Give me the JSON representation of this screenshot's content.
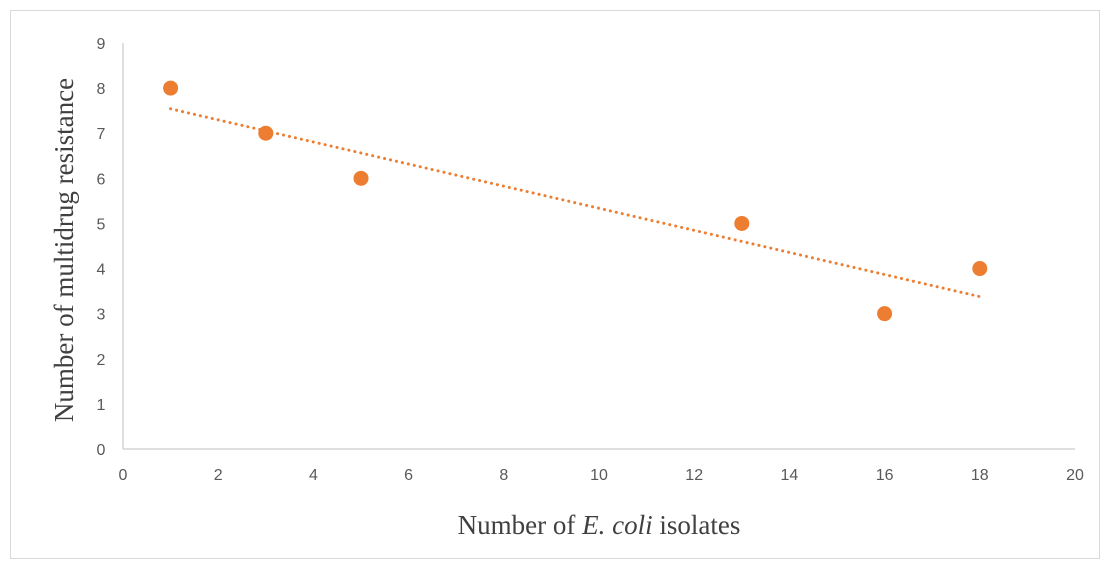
{
  "chart_data": {
    "type": "scatter",
    "title": "",
    "xlabel_parts": [
      {
        "text": "Number of ",
        "italic": false
      },
      {
        "text": "E. coli",
        "italic": true
      },
      {
        "text": " isolates",
        "italic": false
      }
    ],
    "ylabel": "Number of multidrug resistance",
    "xlim": [
      0,
      20
    ],
    "ylim": [
      0,
      9
    ],
    "xticks": [
      0,
      2,
      4,
      6,
      8,
      10,
      12,
      14,
      16,
      18,
      20
    ],
    "yticks": [
      0,
      1,
      2,
      3,
      4,
      5,
      6,
      7,
      8,
      9
    ],
    "grid": false,
    "legend": "none",
    "series": [
      {
        "x": [
          1,
          3,
          5,
          13,
          16,
          18
        ],
        "y": [
          8,
          7,
          6,
          5,
          3,
          4
        ],
        "color": "#ED7D31"
      }
    ],
    "trendline": {
      "type": "linear",
      "style": "dotted",
      "color": "#ED7D31",
      "x_range": [
        1,
        18
      ]
    }
  }
}
